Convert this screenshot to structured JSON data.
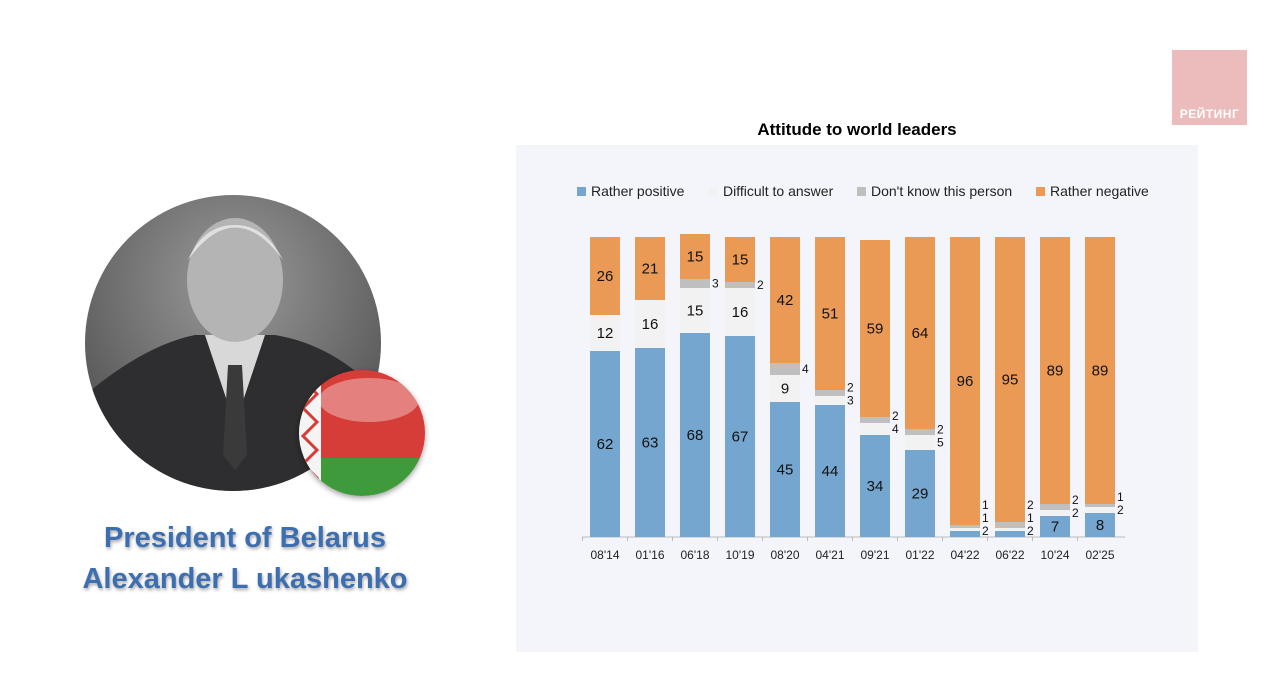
{
  "logo": {
    "text": "РЕЙТИНГ"
  },
  "caption": {
    "line1": "President of Belarus",
    "line2": "Alexander L ukashenko"
  },
  "chart_data": {
    "type": "bar",
    "stacked": true,
    "title": "Attitude to world leaders",
    "categories": [
      "08'14",
      "01'16",
      "06'18",
      "10'19",
      "08'20",
      "04'21",
      "09'21",
      "01'22",
      "04'22",
      "06'22",
      "10'24",
      "02'25"
    ],
    "series": [
      {
        "name": "Rather positive",
        "color": "#74a6cf",
        "values": [
          62,
          63,
          68,
          67,
          45,
          44,
          34,
          29,
          2,
          2,
          7,
          8
        ]
      },
      {
        "name": "Difficult to answer",
        "color": "#f2f2f2",
        "values": [
          12,
          16,
          15,
          16,
          9,
          3,
          4,
          5,
          1,
          1,
          2,
          2
        ]
      },
      {
        "name": "Don't know this person",
        "color": "#bfbfbf",
        "values": [
          0,
          0,
          3,
          2,
          4,
          2,
          2,
          2,
          1,
          2,
          2,
          1
        ]
      },
      {
        "name": "Rather negative",
        "color": "#ea9a55",
        "values": [
          26,
          21,
          15,
          15,
          42,
          51,
          59,
          64,
          96,
          95,
          89,
          89
        ]
      }
    ],
    "ylim": [
      0,
      100
    ],
    "grid": false,
    "legend": "top"
  }
}
